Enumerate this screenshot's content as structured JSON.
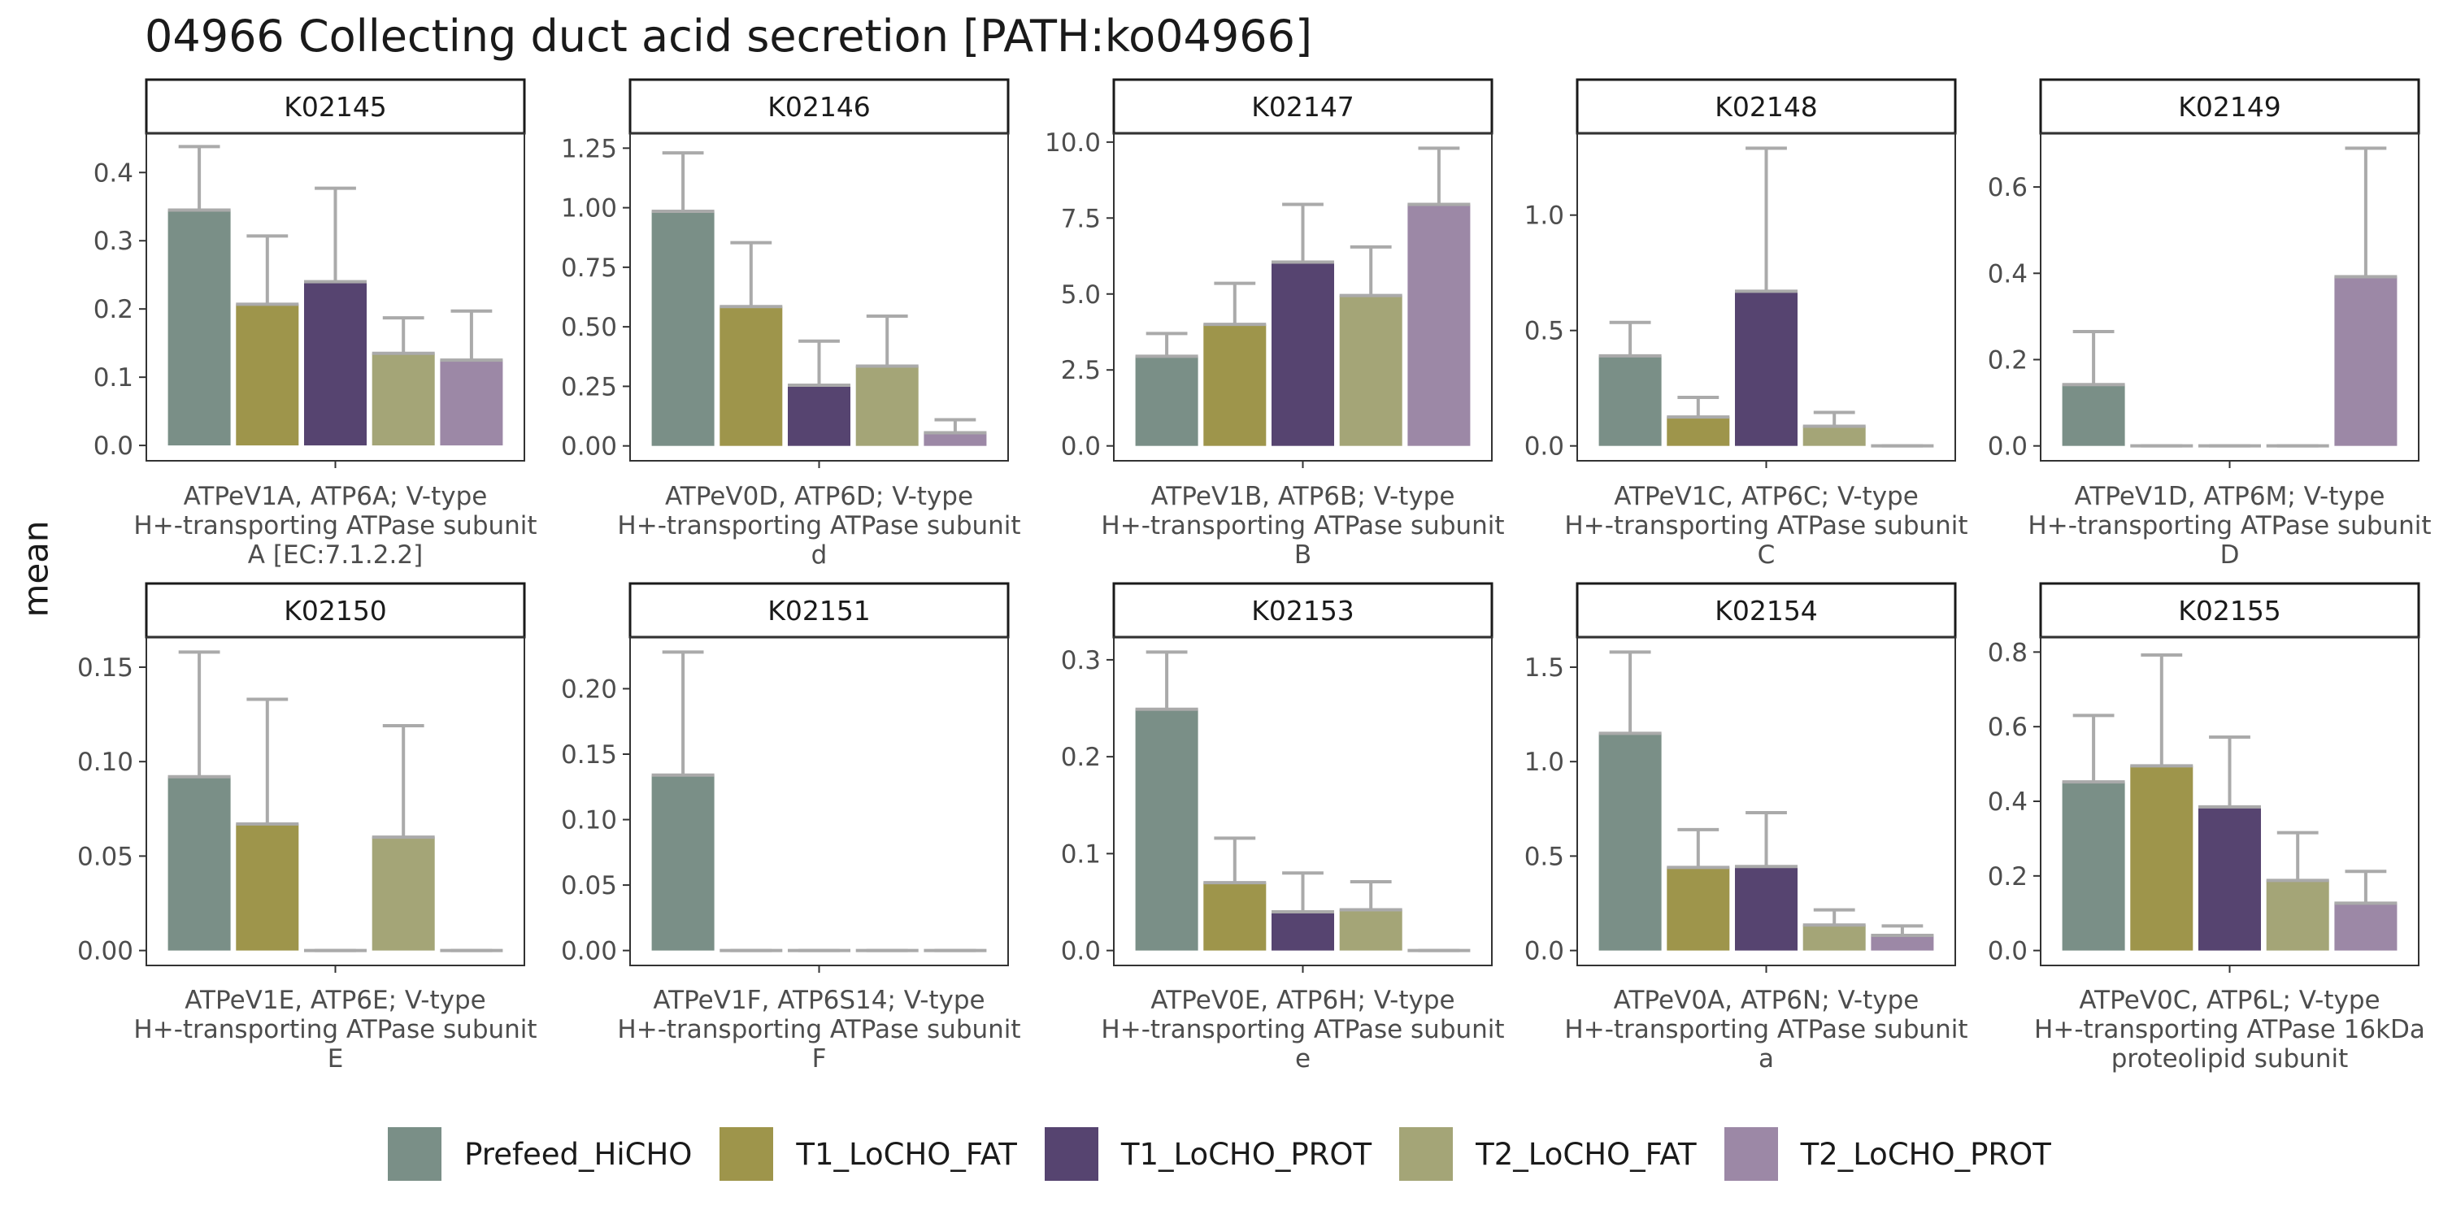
{
  "title": "04966 Collecting duct acid secretion [PATH:ko04966]",
  "y_axis_label": "mean",
  "legend": [
    {
      "label": "Prefeed_HiCHO",
      "color": "#7a8f87"
    },
    {
      "label": "T1_LoCHO_FAT",
      "color": "#9e954b"
    },
    {
      "label": "T1_LoCHO_PROT",
      "color": "#564470"
    },
    {
      "label": "T2_LoCHO_FAT",
      "color": "#a4a577"
    },
    {
      "label": "T2_LoCHO_PROT",
      "color": "#9c88a6"
    }
  ],
  "colors": {
    "error_bar": "#aaaaaa",
    "panel_border": "#333333",
    "strip_border": "#1a1a1a"
  },
  "chart_data": [
    {
      "type": "bar",
      "facet": "K02145",
      "subtitle": [
        "ATPeV1A, ATP6A; V-type",
        "H+-transporting ATPase subunit",
        "A [EC:7.1.2.2]"
      ],
      "categories": [
        "Prefeed_HiCHO",
        "T1_LoCHO_FAT",
        "T1_LoCHO_PROT",
        "T2_LoCHO_FAT",
        "T2_LoCHO_PROT"
      ],
      "values": [
        0.345,
        0.207,
        0.24,
        0.135,
        0.125
      ],
      "errors": [
        0.093,
        0.1,
        0.137,
        0.052,
        0.072
      ],
      "ylim": [
        -0.0225,
        0.4575
      ],
      "yticks": [
        0,
        0.1,
        0.2,
        0.3,
        0.4
      ],
      "ytick_labels": [
        "0.0",
        "0.1",
        "0.2",
        "0.3",
        "0.4"
      ]
    },
    {
      "type": "bar",
      "facet": "K02146",
      "subtitle": [
        "ATPeV0D, ATP6D; V-type",
        "H+-transporting ATPase subunit",
        "d"
      ],
      "categories": [
        "Prefeed_HiCHO",
        "T1_LoCHO_FAT",
        "T1_LoCHO_PROT",
        "T2_LoCHO_FAT",
        "T2_LoCHO_PROT"
      ],
      "values": [
        0.985,
        0.585,
        0.255,
        0.335,
        0.055
      ],
      "errors": [
        0.245,
        0.268,
        0.185,
        0.21,
        0.055
      ],
      "ylim": [
        -0.0625,
        1.3125
      ],
      "yticks": [
        0,
        0.25,
        0.5,
        0.75,
        1.0,
        1.25
      ],
      "ytick_labels": [
        "0.00",
        "0.25",
        "0.50",
        "0.75",
        "1.00",
        "1.25"
      ]
    },
    {
      "type": "bar",
      "facet": "K02147",
      "subtitle": [
        "ATPeV1B, ATP6B; V-type",
        "H+-transporting ATPase subunit",
        "B"
      ],
      "categories": [
        "Prefeed_HiCHO",
        "T1_LoCHO_FAT",
        "T1_LoCHO_PROT",
        "T2_LoCHO_FAT",
        "T2_LoCHO_PROT"
      ],
      "values": [
        2.95,
        4.0,
        6.05,
        4.95,
        7.95
      ],
      "errors": [
        0.75,
        1.35,
        1.9,
        1.6,
        1.85
      ],
      "ylim": [
        -0.49,
        10.29
      ],
      "yticks": [
        0,
        2.5,
        5.0,
        7.5,
        10.0
      ],
      "ytick_labels": [
        "0.0",
        "2.5",
        "5.0",
        "7.5",
        "10.0"
      ]
    },
    {
      "type": "bar",
      "facet": "K02148",
      "subtitle": [
        "ATPeV1C, ATP6C; V-type",
        "H+-transporting ATPase subunit",
        "C"
      ],
      "categories": [
        "Prefeed_HiCHO",
        "T1_LoCHO_FAT",
        "T1_LoCHO_PROT",
        "T2_LoCHO_FAT",
        "T2_LoCHO_PROT"
      ],
      "values": [
        0.39,
        0.125,
        0.67,
        0.085,
        0.0
      ],
      "errors": [
        0.145,
        0.085,
        0.62,
        0.06,
        0.0
      ],
      "ylim": [
        -0.0645,
        1.3545
      ],
      "yticks": [
        0,
        0.5,
        1.0
      ],
      "ytick_labels": [
        "0.0",
        "0.5",
        "1.0"
      ]
    },
    {
      "type": "bar",
      "facet": "K02149",
      "subtitle": [
        "ATPeV1D, ATP6M; V-type",
        "H+-transporting ATPase subunit",
        "D"
      ],
      "categories": [
        "Prefeed_HiCHO",
        "T1_LoCHO_FAT",
        "T1_LoCHO_PROT",
        "T2_LoCHO_FAT",
        "T2_LoCHO_PROT"
      ],
      "values": [
        0.142,
        0.0,
        0.0,
        0.0,
        0.392
      ],
      "errors": [
        0.123,
        0.0,
        0.0,
        0.0,
        0.298
      ],
      "ylim": [
        -0.0345,
        0.7245
      ],
      "yticks": [
        0,
        0.2,
        0.4,
        0.6
      ],
      "ytick_labels": [
        "0.0",
        "0.2",
        "0.4",
        "0.6"
      ]
    },
    {
      "type": "bar",
      "facet": "K02150",
      "subtitle": [
        "ATPeV1E, ATP6E; V-type",
        "H+-transporting ATPase subunit",
        "E"
      ],
      "categories": [
        "Prefeed_HiCHO",
        "T1_LoCHO_FAT",
        "T1_LoCHO_PROT",
        "T2_LoCHO_FAT",
        "T2_LoCHO_PROT"
      ],
      "values": [
        0.092,
        0.067,
        0.0,
        0.06,
        0.0
      ],
      "errors": [
        0.066,
        0.066,
        0.0,
        0.059,
        0.0
      ],
      "ylim": [
        -0.0079,
        0.1659
      ],
      "yticks": [
        0,
        0.05,
        0.1,
        0.15
      ],
      "ytick_labels": [
        "0.00",
        "0.05",
        "0.10",
        "0.15"
      ]
    },
    {
      "type": "bar",
      "facet": "K02151",
      "subtitle": [
        "ATPeV1F, ATP6S14; V-type",
        "H+-transporting ATPase subunit",
        "F"
      ],
      "categories": [
        "Prefeed_HiCHO",
        "T1_LoCHO_FAT",
        "T1_LoCHO_PROT",
        "T2_LoCHO_FAT",
        "T2_LoCHO_PROT"
      ],
      "values": [
        0.134,
        0.0,
        0.0,
        0.0,
        0.0
      ],
      "errors": [
        0.094,
        0.0,
        0.0,
        0.0,
        0.0
      ],
      "ylim": [
        -0.0114,
        0.2394
      ],
      "yticks": [
        0,
        0.05,
        0.1,
        0.15,
        0.2
      ],
      "ytick_labels": [
        "0.00",
        "0.05",
        "0.10",
        "0.15",
        "0.20"
      ]
    },
    {
      "type": "bar",
      "facet": "K02153",
      "subtitle": [
        "ATPeV0E, ATP6H; V-type",
        "H+-transporting ATPase subunit",
        "e"
      ],
      "categories": [
        "Prefeed_HiCHO",
        "T1_LoCHO_FAT",
        "T1_LoCHO_PROT",
        "T2_LoCHO_FAT",
        "T2_LoCHO_PROT"
      ],
      "values": [
        0.249,
        0.07,
        0.04,
        0.042,
        0.0
      ],
      "errors": [
        0.059,
        0.046,
        0.04,
        0.029,
        0.0
      ],
      "ylim": [
        -0.0154,
        0.3234
      ],
      "yticks": [
        0,
        0.1,
        0.2,
        0.3
      ],
      "ytick_labels": [
        "0.0",
        "0.1",
        "0.2",
        "0.3"
      ]
    },
    {
      "type": "bar",
      "facet": "K02154",
      "subtitle": [
        "ATPeV0A, ATP6N; V-type",
        "H+-transporting ATPase subunit",
        "a"
      ],
      "categories": [
        "Prefeed_HiCHO",
        "T1_LoCHO_FAT",
        "T1_LoCHO_PROT",
        "T2_LoCHO_FAT",
        "T2_LoCHO_PROT"
      ],
      "values": [
        1.15,
        0.44,
        0.445,
        0.135,
        0.08
      ],
      "errors": [
        0.43,
        0.2,
        0.285,
        0.08,
        0.05
      ],
      "ylim": [
        -0.079,
        1.659
      ],
      "yticks": [
        0,
        0.5,
        1.0,
        1.5
      ],
      "ytick_labels": [
        "0.0",
        "0.5",
        "1.0",
        "1.5"
      ]
    },
    {
      "type": "bar",
      "facet": "K02155",
      "subtitle": [
        "ATPeV0C, ATP6L; V-type",
        "H+-transporting ATPase 16kDa",
        "proteolipid subunit"
      ],
      "categories": [
        "Prefeed_HiCHO",
        "T1_LoCHO_FAT",
        "T1_LoCHO_PROT",
        "T2_LoCHO_FAT",
        "T2_LoCHO_PROT"
      ],
      "values": [
        0.452,
        0.495,
        0.385,
        0.188,
        0.127
      ],
      "errors": [
        0.178,
        0.297,
        0.187,
        0.128,
        0.085
      ],
      "ylim": [
        -0.04,
        0.84
      ],
      "yticks": [
        0,
        0.2,
        0.4,
        0.6,
        0.8
      ],
      "ytick_labels": [
        "0.0",
        "0.2",
        "0.4",
        "0.6",
        "0.8"
      ]
    }
  ]
}
